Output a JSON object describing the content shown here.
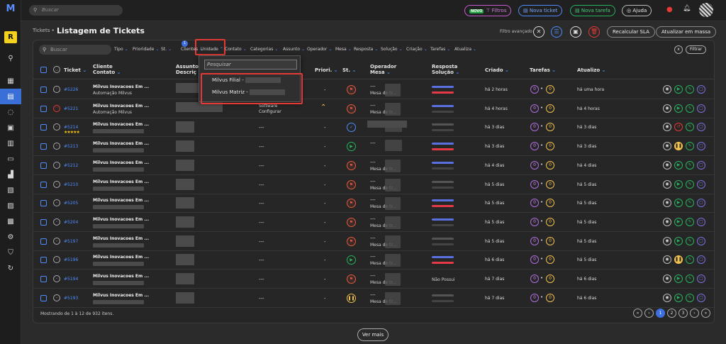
{
  "topbar": {
    "search_placeholder": "Buscar",
    "filtros_badge": "NOVO",
    "filtros": "Filtros",
    "novo_ticket": "Nova ticket",
    "nova_tarefa": "Nova tarefa",
    "ajuda": "Ajuda"
  },
  "header": {
    "breadcrumb": "Tickets •",
    "title": "Listagem de Tickets",
    "filtro_avancado": "Filtro avançado",
    "recalcular": "Recalcular SLA",
    "atualizar": "Atualizar em massa"
  },
  "sidebar": {
    "badge": "R"
  },
  "filters": {
    "search_placeholder": "Buscar",
    "clientes_count": "1",
    "chips": [
      "Tipo",
      "Prioridade",
      "St.",
      "Clientes",
      "Unidade",
      "Contato",
      "Categorias",
      "Assunto",
      "Operador",
      "Mesa",
      "Resposta",
      "Solução",
      "Criação",
      "Tarefas",
      "Atualiza"
    ],
    "clear": "x",
    "filtrar": "Filtrar"
  },
  "columns": {
    "ticket": "Ticket",
    "cliente": "Cliente",
    "contato": "Contato",
    "assunto": "Assunto",
    "descricao": "Descriç",
    "priori": "Priori.",
    "st": "St.",
    "operador": "Operador",
    "mesa": "Mesa",
    "resposta": "Resposta",
    "solucao": "Solução",
    "criado": "Criado",
    "tarefas": "Tarefas",
    "atualizo": "Atualizo"
  },
  "dropdown": {
    "placeholder": "Pesquisar",
    "items": [
      "Milvus Filial -",
      "Milvus Matriz -"
    ]
  },
  "rows": [
    {
      "id": "#5226",
      "cliente": "Milvus Inovacoes Em ...",
      "contato": "Automação Milvus",
      "assunto": "",
      "priori": "-",
      "status": "flag",
      "op1": "---",
      "op2": "Mesa de tr...",
      "criado": "há 2 horas",
      "t1": "0",
      "t2": "0",
      "atu": "há uma hora",
      "face": "neutral"
    },
    {
      "id": "#5221",
      "cliente": "Milvus Inovacoes Em ...",
      "contato": "Automação Milvus",
      "assunto": "Software Configurar",
      "priori": "",
      "status": "flag",
      "op1": "---",
      "op2": "Mesa de tr...",
      "criado": "há 4 horas",
      "t1": "0",
      "t2": "0",
      "atu": "há 4 horas",
      "face": "sad"
    },
    {
      "id": "#5214",
      "cliente": "Milvus Inovacoes Em ...",
      "contato": "",
      "assunto": "---",
      "priori": "-",
      "status": "check",
      "op1": "",
      "op2": "",
      "criado": "há 3 dias",
      "t1": "0",
      "t2": "0",
      "atu": "há 3 dias",
      "face": "neutral",
      "stars": "★★★★★"
    },
    {
      "id": "#5213",
      "cliente": "Milvus Inovacoes Em ...",
      "contato": "",
      "assunto": "---",
      "priori": "-",
      "status": "play",
      "op1": "---",
      "op2": "",
      "criado": "há 3 dias",
      "t1": "0",
      "t2": "0",
      "atu": "há 3 dias",
      "face": "neutral"
    },
    {
      "id": "#5212",
      "cliente": "Milvus Inovacoes Em ...",
      "contato": "",
      "assunto": "---",
      "priori": "-",
      "status": "flag",
      "op1": "---",
      "op2": "Mesa de tr...",
      "criado": "há 4 dias",
      "t1": "0",
      "t2": "0",
      "atu": "há 4 dias",
      "face": "neutral"
    },
    {
      "id": "#5210",
      "cliente": "Milvus Inovacoes Em ...",
      "contato": "",
      "assunto": "---",
      "priori": "-",
      "status": "flag",
      "op1": "---",
      "op2": "Mesa de tr...",
      "criado": "há 5 dias",
      "t1": "0",
      "t2": "0",
      "atu": "há 5 dias",
      "face": "neutral"
    },
    {
      "id": "#5205",
      "cliente": "Milvus Inovacoes Em ...",
      "contato": "",
      "assunto": "---",
      "priori": "-",
      "status": "flag",
      "op1": "---",
      "op2": "Mesa de tr...",
      "criado": "há 5 dias",
      "t1": "0",
      "t2": "0",
      "atu": "há 5 dias",
      "face": "neutral"
    },
    {
      "id": "#5204",
      "cliente": "Milvus Inovacoes Em ...",
      "contato": "",
      "assunto": "---",
      "priori": "-",
      "status": "flag",
      "op1": "---",
      "op2": "Mesa de tr...",
      "criado": "há 5 dias",
      "t1": "0",
      "t2": "0",
      "atu": "há 5 dias",
      "face": "neutral"
    },
    {
      "id": "#5197",
      "cliente": "Milvus Inovacoes Em ...",
      "contato": "",
      "assunto": "---",
      "priori": "-",
      "status": "flag",
      "op1": "---",
      "op2": "Mesa de tr...",
      "criado": "há 5 dias",
      "t1": "0",
      "t2": "0",
      "atu": "há 5 dias",
      "face": "neutral"
    },
    {
      "id": "#5196",
      "cliente": "Milvus Inovacoes Em ...",
      "contato": "",
      "assunto": "---",
      "priori": "-",
      "status": "play",
      "op1": "---",
      "op2": "Mesa de tr...",
      "criado": "há 6 dias",
      "t1": "0",
      "t2": "0",
      "atu": "há 5 dias",
      "face": "neutral"
    },
    {
      "id": "#5194",
      "cliente": "Milvus Inovacoes Em ...",
      "contato": "",
      "assunto": "---",
      "priori": "-",
      "status": "flag",
      "op1": "---",
      "op2": "Mesa de tr...",
      "criado": "há 7 dias",
      "t1": "0",
      "t2": "0",
      "atu": "há 6 dias",
      "face": "neutral",
      "nposs": "Não Possui"
    },
    {
      "id": "#5193",
      "cliente": "Milvus Inovacoes Em ...",
      "contato": "",
      "assunto": "---",
      "priori": "-",
      "status": "pause",
      "op1": "---",
      "op2": "Mesa de tr...",
      "criado": "há 7 dias",
      "t1": "0",
      "t2": "0",
      "atu": "há 6 dias",
      "face": "neutral"
    }
  ],
  "footer": {
    "showing": "Mostrando de 1 à 12 de 932 itens.",
    "pages": [
      "«",
      "‹",
      "1",
      "2",
      "3",
      "›",
      "»"
    ],
    "ver_mais": "Ver mais"
  }
}
